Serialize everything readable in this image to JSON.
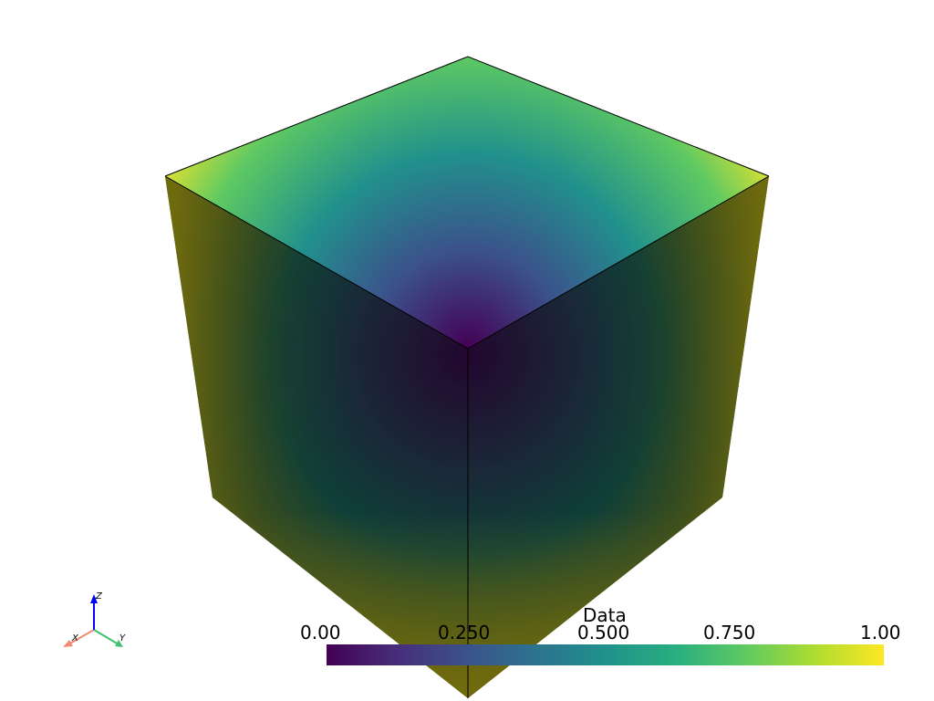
{
  "scalar_bar": {
    "title": "Data",
    "tick_labels": [
      "0.00",
      "0.250",
      "0.500",
      "0.750",
      "1.00"
    ],
    "range": [
      0,
      1
    ],
    "colormap": "viridis",
    "colors": [
      "#440154",
      "#3b528b",
      "#21918c",
      "#5ec962",
      "#fde725"
    ]
  },
  "axes_widget": {
    "x_label": "X",
    "y_label": "Y",
    "z_label": "Z",
    "x_color": "#f08a70",
    "y_color": "#40c070",
    "z_color": "#0000ff"
  },
  "background": "#ffffff"
}
